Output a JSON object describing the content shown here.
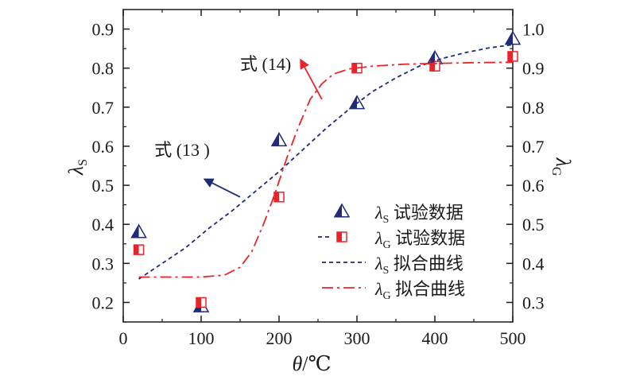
{
  "chart_data": {
    "type": "scatter",
    "x_axis": {
      "label_main": "θ",
      "label_unit": "/℃",
      "range": [
        0,
        500
      ],
      "ticks": [
        0,
        100,
        200,
        300,
        400,
        500
      ]
    },
    "y_left": {
      "label_main": "λ",
      "label_sub": "S",
      "range": [
        0.15,
        0.95
      ],
      "ticks": [
        0.2,
        0.3,
        0.4,
        0.5,
        0.6,
        0.7,
        0.8,
        0.9
      ],
      "tick_labels": [
        "0.2",
        "0.3",
        "0.4",
        "0.5",
        "0.6",
        "0.7",
        "0.8",
        "0.9"
      ]
    },
    "y_right": {
      "label_main": "λ",
      "label_sub": "G",
      "range": [
        0.25,
        1.05
      ],
      "ticks": [
        0.3,
        0.4,
        0.5,
        0.6,
        0.7,
        0.8,
        0.9,
        1.0
      ],
      "tick_labels": [
        "0.3",
        "0.4",
        "0.5",
        "0.6",
        "0.7",
        "0.8",
        "0.9",
        "1.0"
      ]
    },
    "grid": false,
    "legend_position": "bottom-right",
    "series": [
      {
        "id": "s_test",
        "name_main": "λ",
        "name_sub": "S",
        "name_text": " 试验数据",
        "kind": "marker-triangle",
        "axis": "left",
        "color": "#1f2a78",
        "x": [
          20,
          100,
          200,
          300,
          400,
          500
        ],
        "y": [
          0.38,
          0.19,
          0.615,
          0.71,
          0.825,
          0.875
        ]
      },
      {
        "id": "g_test",
        "name_main": "λ",
        "name_sub": "G",
        "name_text": " 试验数据",
        "kind": "marker-square",
        "axis": "right",
        "color": "#e8242a",
        "x": [
          20,
          100,
          200,
          300,
          400,
          500
        ],
        "y": [
          0.435,
          0.3,
          0.57,
          0.9,
          0.905,
          0.93
        ]
      },
      {
        "id": "s_fit",
        "name_main": "λ",
        "name_sub": "S",
        "name_text": " 拟合曲线",
        "kind": "line-dash",
        "axis": "left",
        "color": "#1f2a78",
        "x": [
          20,
          50,
          80,
          110,
          140,
          170,
          200,
          230,
          260,
          290,
          320,
          350,
          380,
          410,
          440,
          470,
          500
        ],
        "y": [
          0.26,
          0.3,
          0.34,
          0.39,
          0.435,
          0.485,
          0.535,
          0.59,
          0.645,
          0.695,
          0.74,
          0.775,
          0.805,
          0.825,
          0.84,
          0.852,
          0.86
        ]
      },
      {
        "id": "g_fit",
        "name_main": "λ",
        "name_sub": "G",
        "name_text": " 拟合曲线",
        "kind": "line-dashdot",
        "axis": "right",
        "color": "#e8242a",
        "x": [
          20,
          60,
          100,
          130,
          150,
          165,
          180,
          195,
          210,
          225,
          240,
          255,
          270,
          290,
          320,
          360,
          400,
          450,
          500
        ],
        "y": [
          0.365,
          0.365,
          0.365,
          0.37,
          0.39,
          0.43,
          0.5,
          0.58,
          0.67,
          0.75,
          0.82,
          0.86,
          0.885,
          0.898,
          0.905,
          0.91,
          0.912,
          0.914,
          0.915
        ]
      }
    ],
    "annotations": [
      {
        "id": "eq13",
        "text": "式 (13 )",
        "target_series": "s_fit",
        "arrow_from": [
          150,
          0.47
        ],
        "arrow_to": [
          105,
          0.515
        ],
        "text_at": [
          40,
          0.575
        ]
      },
      {
        "id": "eq14",
        "text": "式 (14)",
        "target_series": "g_fit",
        "arrow_from": [
          255,
          0.82
        ],
        "arrow_to": [
          228,
          0.92
        ],
        "text_at": [
          150,
          0.895
        ]
      }
    ]
  }
}
